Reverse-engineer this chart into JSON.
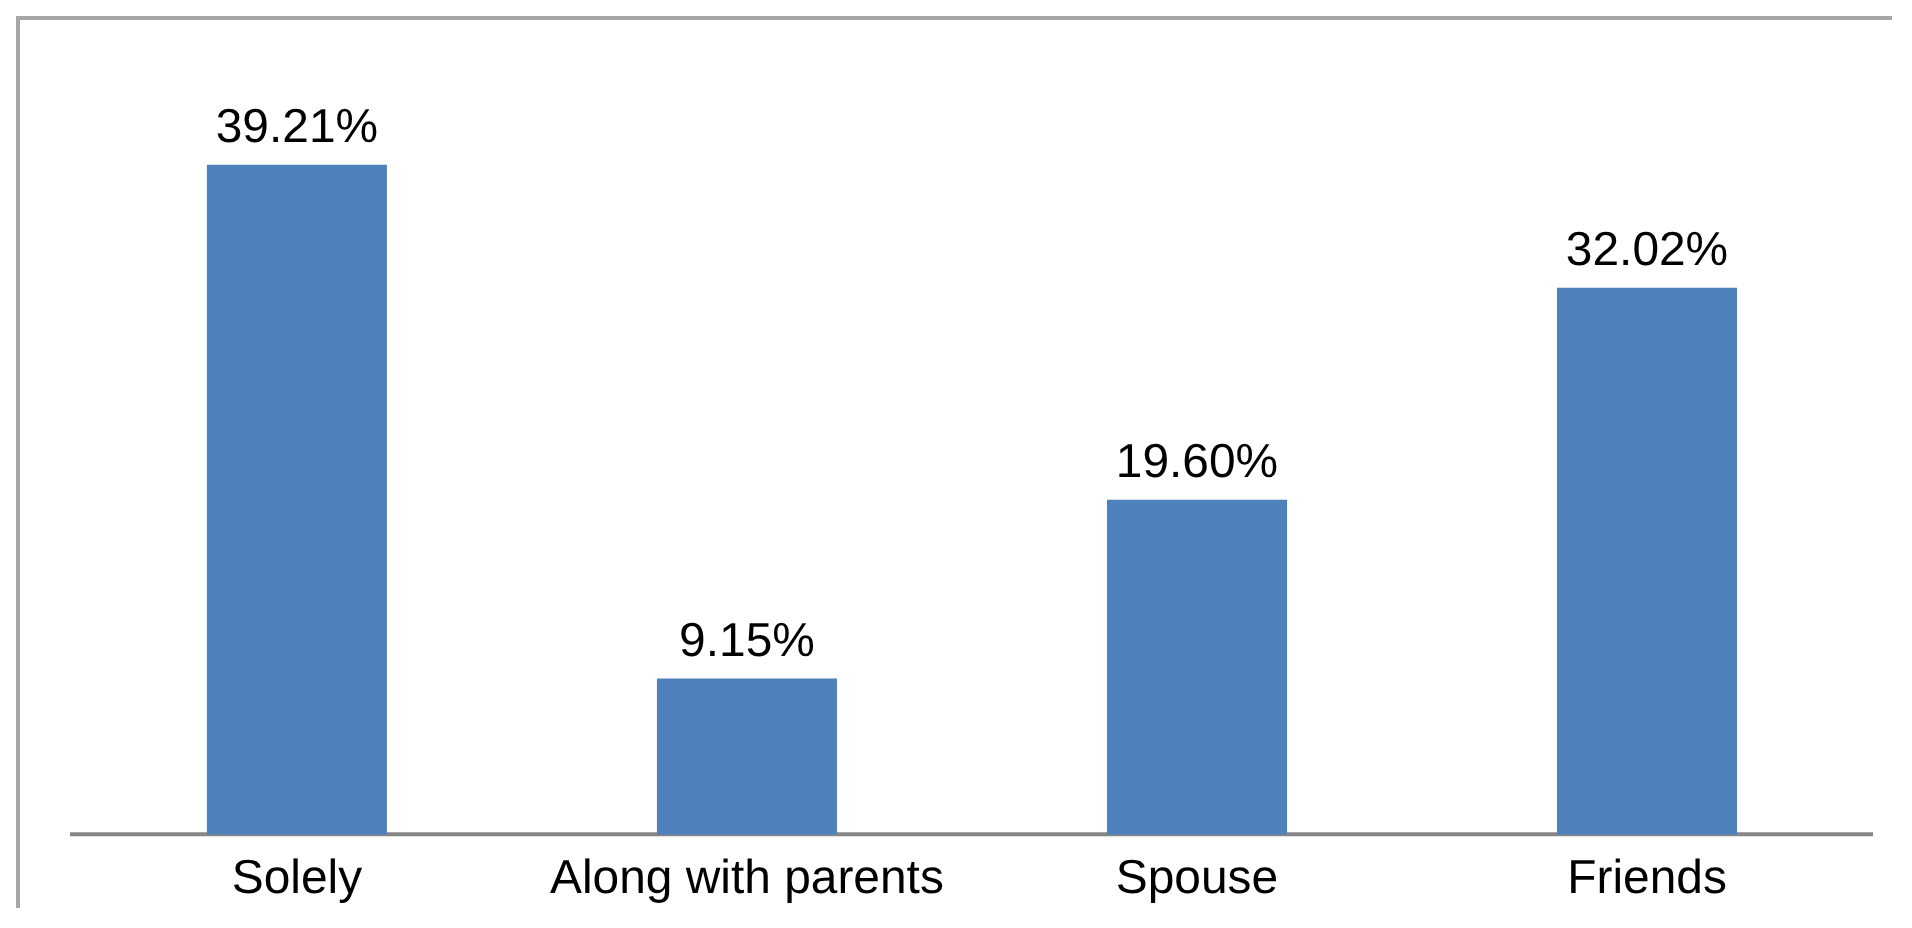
{
  "chart_data": {
    "type": "bar",
    "categories": [
      "Solely",
      "Along with parents",
      "Spouse",
      "Friends"
    ],
    "values": [
      39.21,
      9.15,
      19.6,
      32.02
    ],
    "color": "#4f81bd",
    "value_labels": [
      "39.21%",
      "9.15%",
      "19.60%",
      "32.02%"
    ],
    "tick_labels": "x"
  }
}
